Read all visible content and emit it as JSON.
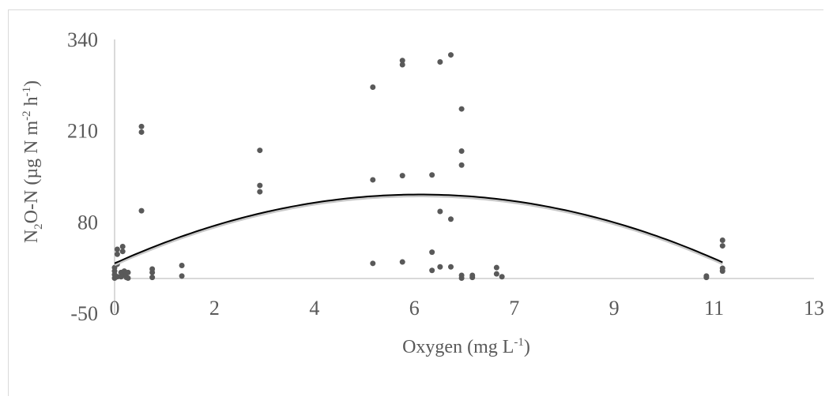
{
  "chart_data": {
    "type": "scatter",
    "xlabel": {
      "main": "Oxygen (mg L",
      "sup": "-1",
      "close": ")"
    },
    "ylabel": {
      "parts": [
        {
          "t": "N",
          "s": ""
        },
        {
          "t": "2",
          "s": "sub"
        },
        {
          "t": "O-N (µg N m",
          "s": ""
        },
        {
          "t": "-2",
          "s": "sup"
        },
        {
          "t": " h",
          "s": ""
        },
        {
          "t": "-1",
          "s": "sup"
        },
        {
          "t": ")",
          "s": ""
        }
      ]
    },
    "xlim": [
      0,
      13
    ],
    "ylim": [
      -50,
      340
    ],
    "x_ticks": [
      "0",
      "2",
      "4",
      "6",
      "7",
      "9",
      "11",
      "13"
    ],
    "y_ticks": [
      "-50",
      "80",
      "210",
      "340"
    ],
    "trendline": {
      "type": "polynomial",
      "order": 2,
      "coefficients": [
        -3.05,
        34.6,
        21.0
      ],
      "x_range": [
        0,
        11.3
      ]
    },
    "points": [
      [
        0.0,
        0
      ],
      [
        0.0,
        5
      ],
      [
        0.0,
        10
      ],
      [
        0.0,
        15
      ],
      [
        0.05,
        2
      ],
      [
        0.05,
        20
      ],
      [
        0.05,
        34
      ],
      [
        0.05,
        41
      ],
      [
        0.12,
        2
      ],
      [
        0.12,
        8
      ],
      [
        0.15,
        38
      ],
      [
        0.15,
        45
      ],
      [
        0.18,
        5
      ],
      [
        0.18,
        10
      ],
      [
        0.22,
        1
      ],
      [
        0.22,
        7
      ],
      [
        0.25,
        0
      ],
      [
        0.25,
        8
      ],
      [
        0.5,
        96
      ],
      [
        0.5,
        208
      ],
      [
        0.5,
        216
      ],
      [
        0.7,
        1
      ],
      [
        0.7,
        8
      ],
      [
        0.7,
        13
      ],
      [
        1.25,
        3
      ],
      [
        1.25,
        18
      ],
      [
        2.7,
        123
      ],
      [
        2.7,
        132
      ],
      [
        2.7,
        182
      ],
      [
        4.8,
        21
      ],
      [
        4.8,
        140
      ],
      [
        4.8,
        272
      ],
      [
        5.35,
        23
      ],
      [
        5.35,
        146
      ],
      [
        5.35,
        304
      ],
      [
        5.35,
        310
      ],
      [
        5.9,
        11
      ],
      [
        5.9,
        37
      ],
      [
        5.9,
        147
      ],
      [
        6.05,
        16
      ],
      [
        6.05,
        95
      ],
      [
        6.05,
        308
      ],
      [
        6.25,
        16
      ],
      [
        6.25,
        84
      ],
      [
        6.25,
        318
      ],
      [
        6.45,
        0
      ],
      [
        6.45,
        4
      ],
      [
        6.45,
        161
      ],
      [
        6.45,
        181
      ],
      [
        6.45,
        241
      ],
      [
        6.65,
        1
      ],
      [
        6.65,
        4
      ],
      [
        7.1,
        6
      ],
      [
        7.1,
        15
      ],
      [
        7.2,
        2
      ],
      [
        11.0,
        1
      ],
      [
        11.0,
        3
      ],
      [
        11.3,
        10
      ],
      [
        11.3,
        14
      ],
      [
        11.3,
        46
      ],
      [
        11.3,
        54
      ]
    ],
    "colors": {
      "points": "#595959",
      "trend": "#000000",
      "axis": "#d9d9d9",
      "text": "#595959"
    },
    "grid": false,
    "legend": "none"
  }
}
